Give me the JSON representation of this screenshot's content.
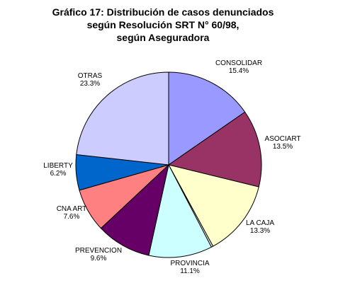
{
  "chart_data": {
    "type": "pie",
    "title_lines": [
      "Gráfico 17: Distribución de casos denunciados",
      "según Resolución SRT N° 60/98,",
      "según Aseguradora"
    ],
    "slices": [
      {
        "label": "CONSOLIDAR",
        "value_label": "15.4%",
        "value": 15.4,
        "color": "#9999ff"
      },
      {
        "label": "ASOCIART",
        "value_label": "13.5%",
        "value": 13.5,
        "color": "#993366"
      },
      {
        "label": "LA CAJA",
        "value_label": "13.3%",
        "value": 13.3,
        "color": "#ffffcc"
      },
      {
        "label": "",
        "value_label": "",
        "value": 0.3,
        "color": "#ffffff"
      },
      {
        "label": "PROVINCIA",
        "value_label": "11.1%",
        "value": 11.1,
        "color": "#ccffff"
      },
      {
        "label": "PREVENCION",
        "value_label": "9.6%",
        "value": 9.6,
        "color": "#660066"
      },
      {
        "label": "CNA ART",
        "value_label": "7.6%",
        "value": 7.6,
        "color": "#ff8080"
      },
      {
        "label": "LIBERTY",
        "value_label": "6.2%",
        "value": 6.2,
        "color": "#0066cc"
      },
      {
        "label": "OTRAS",
        "value_label": "23.3%",
        "value": 23.3,
        "color": "#ccccff"
      }
    ]
  }
}
